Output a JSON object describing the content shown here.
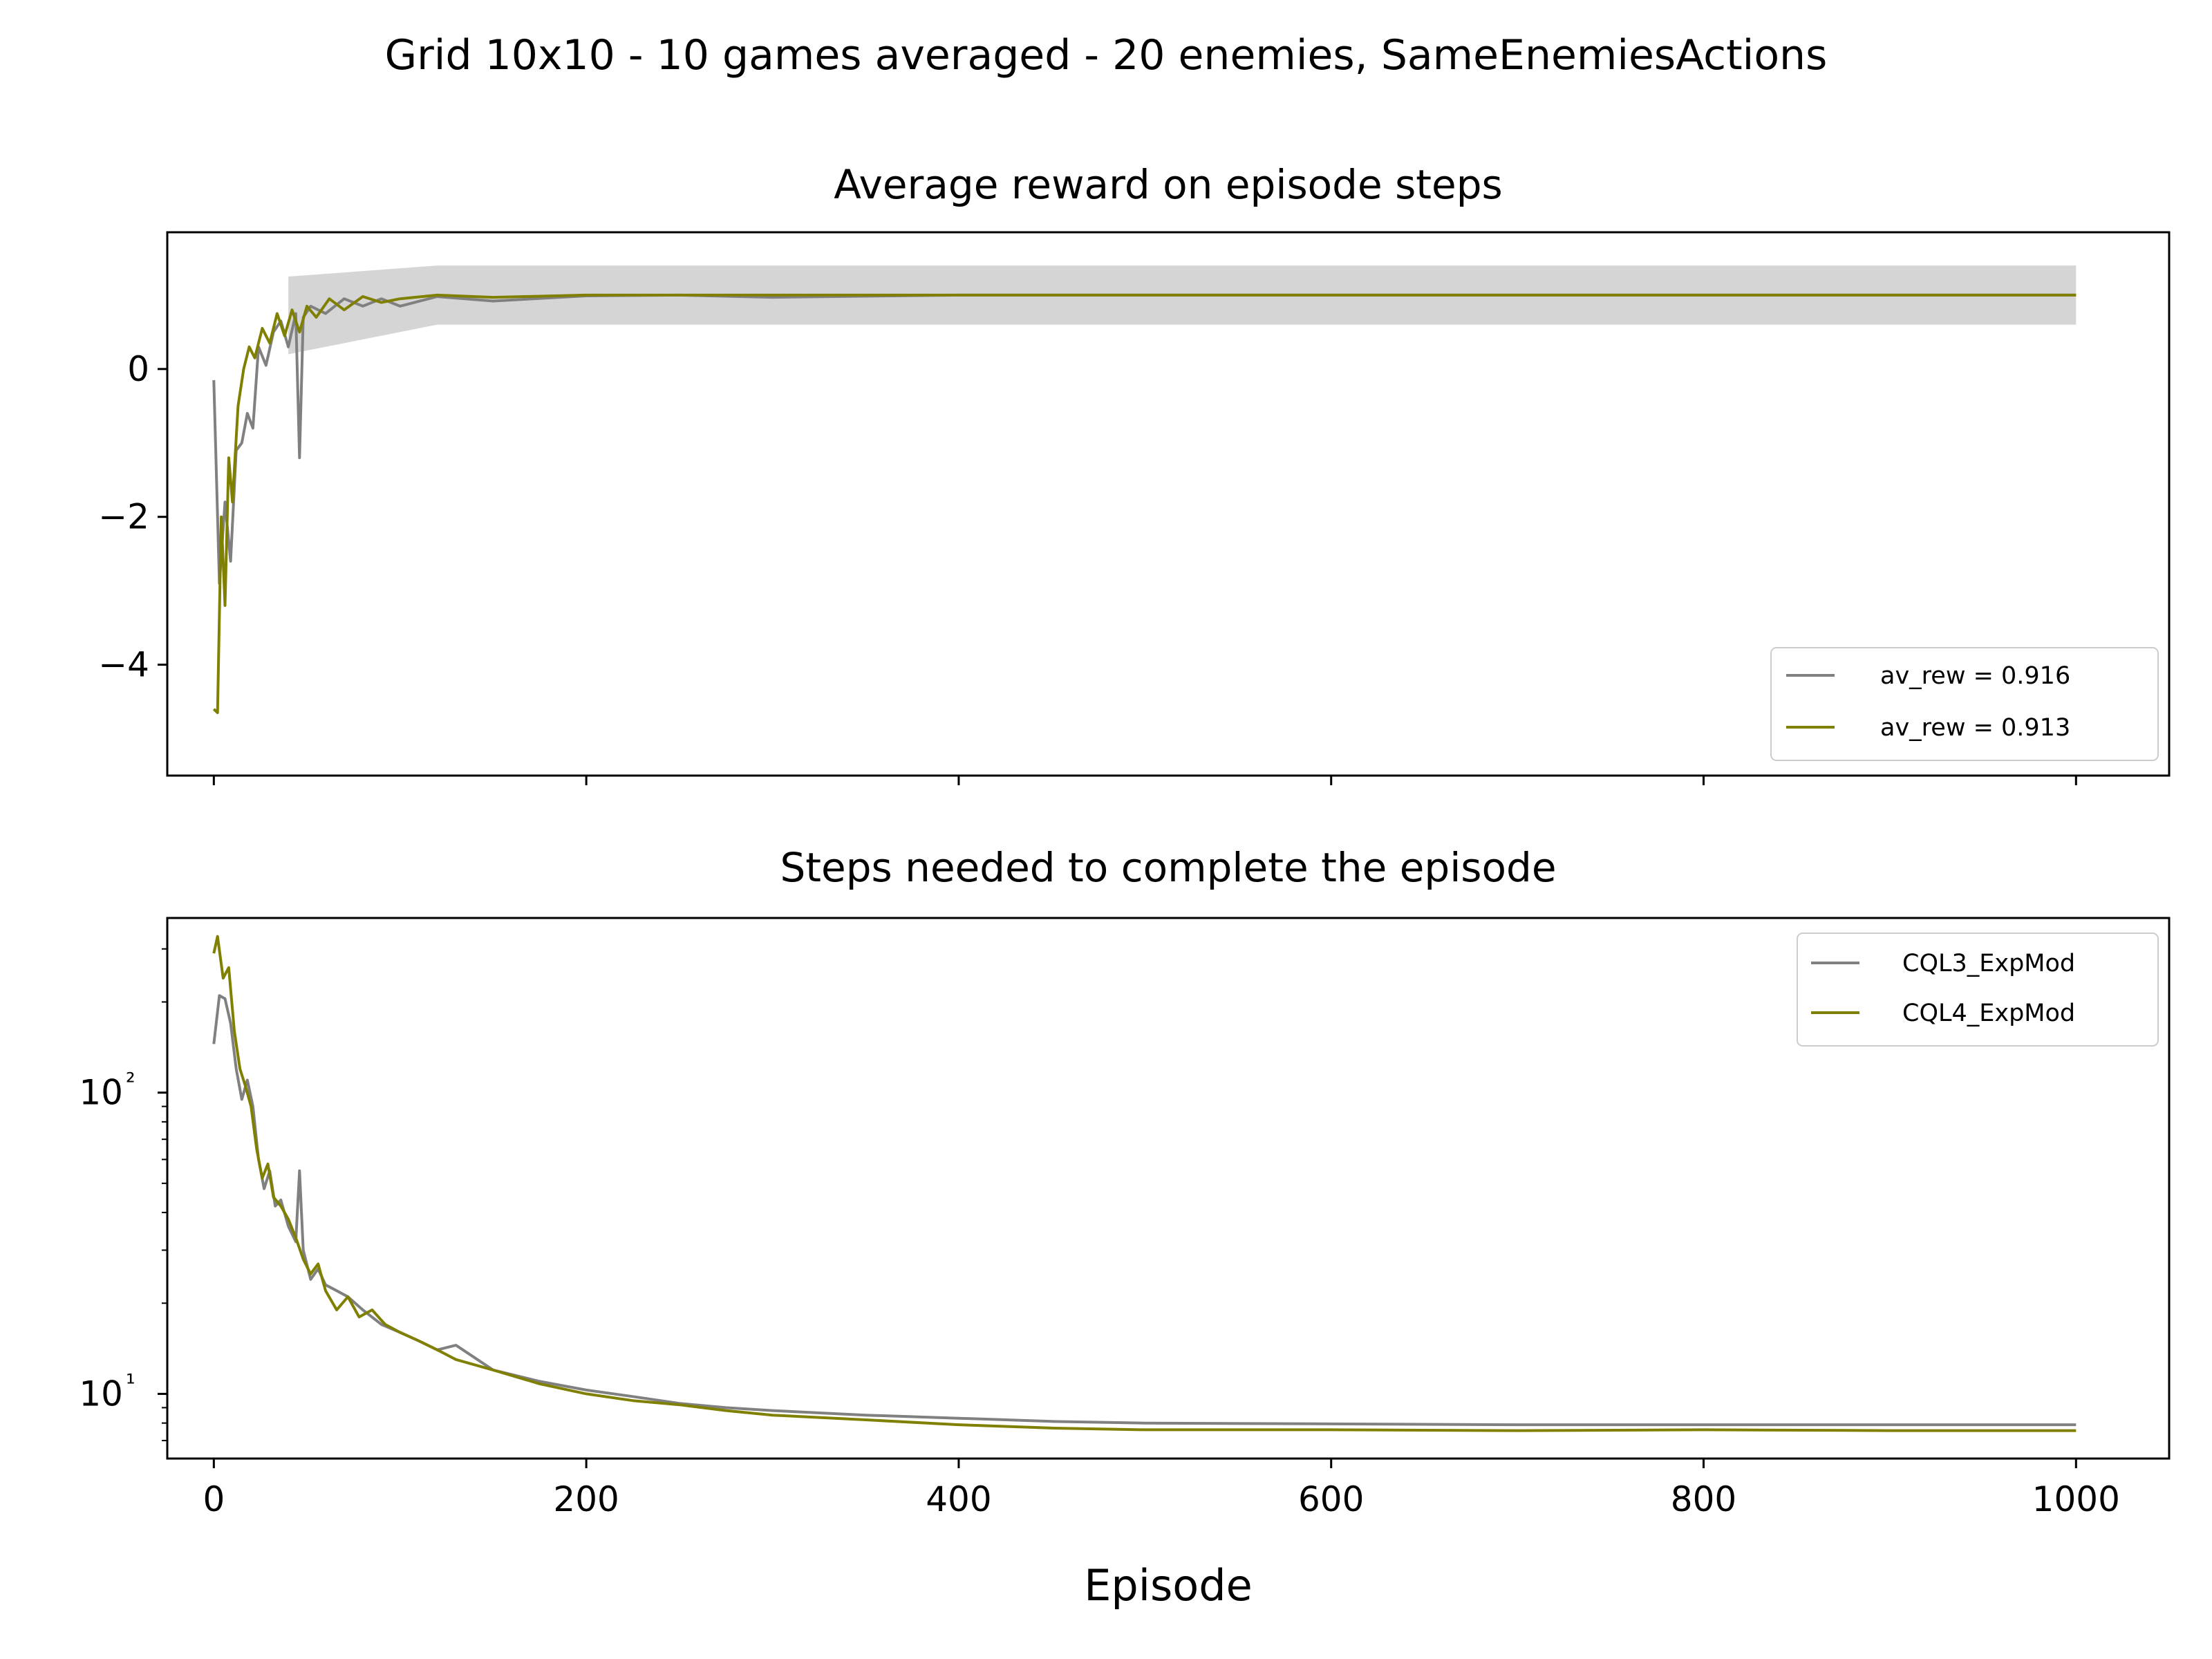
{
  "figure": {
    "suptitle": "Grid 10x10 - 10 games averaged - 20 enemies, SameEnemiesActions",
    "xlabel": "Episode"
  },
  "chart_data": [
    {
      "type": "line",
      "title": "Average reward on episode steps",
      "xlabel": "",
      "ylabel": "",
      "xlim": [
        -25,
        1050
      ],
      "ylim": [
        -5.5,
        1.85
      ],
      "x_ticks": [
        0,
        200,
        400,
        600,
        800,
        1000
      ],
      "x_tick_labels_visible": false,
      "y_ticks": [
        0,
        -2,
        -4
      ],
      "y_tick_labels": [
        "0",
        "−2",
        "−4"
      ],
      "grid": false,
      "legend": {
        "placement": "lower-right"
      },
      "band": {
        "color": "#d3d3d3",
        "lower": 0.6,
        "upper": 1.4,
        "from_x": 40,
        "note_early_lower": 0.2,
        "note_early_upper": 1.25
      },
      "series": [
        {
          "name": "av_rew = 0.916",
          "color": "#808080",
          "points": [
            [
              0,
              -0.15
            ],
            [
              3,
              -2.9
            ],
            [
              6,
              -1.8
            ],
            [
              9,
              -2.6
            ],
            [
              12,
              -1.1
            ],
            [
              15,
              -1.0
            ],
            [
              18,
              -0.6
            ],
            [
              21,
              -0.8
            ],
            [
              24,
              0.3
            ],
            [
              28,
              0.05
            ],
            [
              32,
              0.5
            ],
            [
              36,
              0.65
            ],
            [
              40,
              0.3
            ],
            [
              44,
              0.75
            ],
            [
              46,
              -1.2
            ],
            [
              48,
              0.7
            ],
            [
              52,
              0.85
            ],
            [
              60,
              0.75
            ],
            [
              70,
              0.95
            ],
            [
              80,
              0.85
            ],
            [
              90,
              0.95
            ],
            [
              100,
              0.85
            ],
            [
              120,
              0.98
            ],
            [
              150,
              0.92
            ],
            [
              200,
              0.99
            ],
            [
              250,
              1.0
            ],
            [
              300,
              0.97
            ],
            [
              400,
              1.0
            ],
            [
              500,
              1.0
            ],
            [
              600,
              1.0
            ],
            [
              700,
              1.0
            ],
            [
              800,
              1.0
            ],
            [
              900,
              1.0
            ],
            [
              1000,
              1.0
            ]
          ]
        },
        {
          "name": "av_rew = 0.913",
          "color": "#808000",
          "points": [
            [
              0,
              -4.6
            ],
            [
              2,
              -4.65
            ],
            [
              4,
              -2.0
            ],
            [
              6,
              -3.2
            ],
            [
              8,
              -1.2
            ],
            [
              10,
              -1.8
            ],
            [
              13,
              -0.5
            ],
            [
              16,
              0.0
            ],
            [
              19,
              0.3
            ],
            [
              22,
              0.15
            ],
            [
              26,
              0.55
            ],
            [
              30,
              0.35
            ],
            [
              34,
              0.75
            ],
            [
              38,
              0.45
            ],
            [
              42,
              0.8
            ],
            [
              46,
              0.5
            ],
            [
              50,
              0.85
            ],
            [
              55,
              0.7
            ],
            [
              62,
              0.95
            ],
            [
              70,
              0.8
            ],
            [
              80,
              0.98
            ],
            [
              90,
              0.9
            ],
            [
              100,
              0.95
            ],
            [
              120,
              1.0
            ],
            [
              150,
              0.97
            ],
            [
              200,
              1.0
            ],
            [
              300,
              1.0
            ],
            [
              400,
              1.0
            ],
            [
              500,
              1.0
            ],
            [
              600,
              1.0
            ],
            [
              700,
              1.0
            ],
            [
              800,
              1.0
            ],
            [
              900,
              1.0
            ],
            [
              1000,
              1.0
            ]
          ]
        }
      ]
    },
    {
      "type": "line",
      "title": "Steps needed to complete the episode",
      "xlabel": "Episode",
      "ylabel": "",
      "yscale": "log",
      "xlim": [
        -25,
        1050
      ],
      "ylim": [
        6.1,
        380
      ],
      "x_ticks": [
        0,
        200,
        400,
        600,
        800,
        1000
      ],
      "x_tick_labels": [
        "0",
        "200",
        "400",
        "600",
        "800",
        "1000"
      ],
      "y_ticks": [
        10,
        100
      ],
      "y_tick_labels": [
        "10¹",
        "10²"
      ],
      "grid": false,
      "legend": {
        "placement": "upper-right"
      },
      "series": [
        {
          "name": "CQL3_ExpMod",
          "color": "#808080",
          "points": [
            [
              0,
              145
            ],
            [
              3,
              210
            ],
            [
              6,
              205
            ],
            [
              9,
              170
            ],
            [
              12,
              120
            ],
            [
              15,
              95
            ],
            [
              18,
              110
            ],
            [
              21,
              90
            ],
            [
              24,
              60
            ],
            [
              27,
              48
            ],
            [
              30,
              55
            ],
            [
              33,
              42
            ],
            [
              36,
              44
            ],
            [
              40,
              36
            ],
            [
              44,
              32
            ],
            [
              46,
              55
            ],
            [
              48,
              30
            ],
            [
              52,
              24
            ],
            [
              56,
              26
            ],
            [
              60,
              23
            ],
            [
              66,
              22
            ],
            [
              72,
              21
            ],
            [
              80,
              19
            ],
            [
              90,
              17
            ],
            [
              100,
              16
            ],
            [
              110,
              15
            ],
            [
              120,
              14
            ],
            [
              130,
              14.5
            ],
            [
              150,
              12
            ],
            [
              175,
              11
            ],
            [
              200,
              10.3
            ],
            [
              225,
              9.8
            ],
            [
              250,
              9.3
            ],
            [
              275,
              9.0
            ],
            [
              300,
              8.8
            ],
            [
              350,
              8.5
            ],
            [
              400,
              8.3
            ],
            [
              450,
              8.1
            ],
            [
              500,
              8.0
            ],
            [
              600,
              7.95
            ],
            [
              700,
              7.9
            ],
            [
              800,
              7.9
            ],
            [
              900,
              7.9
            ],
            [
              1000,
              7.9
            ]
          ]
        },
        {
          "name": "CQL4_ExpMod",
          "color": "#808000",
          "points": [
            [
              0,
              290
            ],
            [
              2,
              330
            ],
            [
              5,
              240
            ],
            [
              8,
              260
            ],
            [
              11,
              160
            ],
            [
              14,
              120
            ],
            [
              17,
              105
            ],
            [
              20,
              90
            ],
            [
              23,
              65
            ],
            [
              26,
              52
            ],
            [
              29,
              58
            ],
            [
              32,
              45
            ],
            [
              36,
              42
            ],
            [
              40,
              38
            ],
            [
              44,
              33
            ],
            [
              48,
              28
            ],
            [
              52,
              25
            ],
            [
              56,
              27
            ],
            [
              60,
              22
            ],
            [
              66,
              19
            ],
            [
              72,
              21
            ],
            [
              78,
              18
            ],
            [
              85,
              19
            ],
            [
              92,
              17
            ],
            [
              100,
              16
            ],
            [
              110,
              15
            ],
            [
              120,
              14
            ],
            [
              130,
              13
            ],
            [
              150,
              12
            ],
            [
              175,
              10.8
            ],
            [
              200,
              10
            ],
            [
              225,
              9.5
            ],
            [
              250,
              9.2
            ],
            [
              275,
              8.8
            ],
            [
              300,
              8.5
            ],
            [
              350,
              8.2
            ],
            [
              400,
              7.9
            ],
            [
              450,
              7.7
            ],
            [
              500,
              7.6
            ],
            [
              600,
              7.6
            ],
            [
              700,
              7.55
            ],
            [
              800,
              7.6
            ],
            [
              900,
              7.55
            ],
            [
              1000,
              7.55
            ]
          ]
        }
      ]
    }
  ]
}
